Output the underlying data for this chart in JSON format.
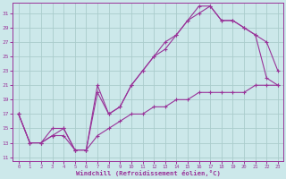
{
  "xlabel": "Windchill (Refroidissement éolien,°C)",
  "background_color": "#cce8ea",
  "grid_color": "#aacccc",
  "line_color": "#993399",
  "ylim": [
    11,
    32
  ],
  "yticks": [
    11,
    13,
    15,
    17,
    19,
    21,
    23,
    25,
    27,
    29,
    31
  ],
  "xticks": [
    0,
    1,
    2,
    3,
    4,
    5,
    6,
    7,
    8,
    9,
    10,
    11,
    12,
    13,
    14,
    15,
    16,
    17,
    18,
    19,
    20,
    21,
    22,
    23
  ],
  "line1_x": [
    0,
    1,
    2,
    3,
    4,
    5,
    6,
    7,
    8,
    9,
    10,
    11,
    12,
    13,
    14,
    15,
    16,
    17,
    18,
    19,
    20,
    21,
    22,
    23
  ],
  "line1_y": [
    17,
    13,
    13,
    14,
    14,
    12,
    12,
    14,
    15,
    16,
    17,
    17,
    18,
    18,
    19,
    19,
    20,
    20,
    20,
    20,
    20,
    21,
    21,
    21
  ],
  "line2_x": [
    0,
    1,
    2,
    3,
    4,
    5,
    6,
    7,
    8,
    9,
    10,
    11,
    12,
    13,
    14,
    15,
    16,
    17,
    18,
    19,
    20,
    21,
    22,
    23
  ],
  "line2_y": [
    17,
    13,
    13,
    14,
    15,
    12,
    12,
    20,
    17,
    18,
    21,
    23,
    25,
    27,
    28,
    30,
    32,
    32,
    30,
    30,
    29,
    28,
    27,
    23
  ],
  "line3_x": [
    0,
    1,
    2,
    3,
    4,
    5,
    6,
    7,
    8,
    9,
    10,
    11,
    12,
    13,
    14,
    15,
    16,
    17,
    18,
    19,
    20,
    21,
    22,
    23
  ],
  "line3_y": [
    17,
    13,
    13,
    15,
    15,
    12,
    12,
    21,
    17,
    18,
    21,
    23,
    25,
    26,
    28,
    30,
    31,
    32,
    30,
    30,
    29,
    28,
    22,
    21
  ]
}
